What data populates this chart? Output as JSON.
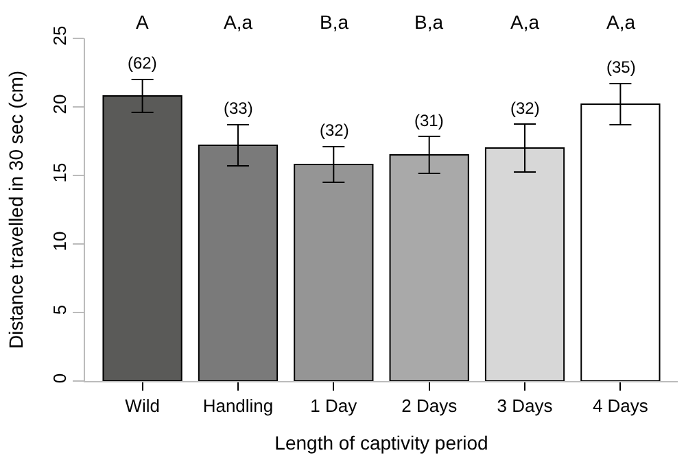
{
  "chart_data": {
    "type": "bar",
    "xlabel": "Length of captivity period",
    "ylabel": "Distance travelled in 30 sec (cm)",
    "categories": [
      "Wild",
      "Handling",
      "1 Day",
      "2 Days",
      "3 Days",
      "4 Days"
    ],
    "values": [
      20.8,
      17.2,
      15.8,
      16.5,
      17.0,
      20.2
    ],
    "errors": [
      1.2,
      1.5,
      1.3,
      1.35,
      1.75,
      1.5
    ],
    "colors": [
      "#5a5a58",
      "#7a7a7a",
      "#959595",
      "#a9a9a9",
      "#d7d7d7",
      "#ffffff"
    ],
    "ylim": [
      0,
      25
    ],
    "yticks": [
      0,
      5,
      10,
      15,
      20,
      25
    ],
    "annotations": [
      "A",
      "A,a",
      "B,a",
      "B,a",
      "A,a",
      "A,a",
      {
        "text": "(62)",
        "x": "Wild",
        "y": 22.0
      },
      {
        "text": "(33)",
        "x": "Handling",
        "y": 18.7
      },
      {
        "text": "(32)",
        "x": "1 Day",
        "y": 17.1
      },
      {
        "text": "(31)",
        "x": "2 Days",
        "y": 17.85
      },
      {
        "text": "(32)",
        "x": "3 Days",
        "y": 18.75
      },
      {
        "text": "(35)",
        "x": "4 Days",
        "y": 21.7
      }
    ]
  }
}
